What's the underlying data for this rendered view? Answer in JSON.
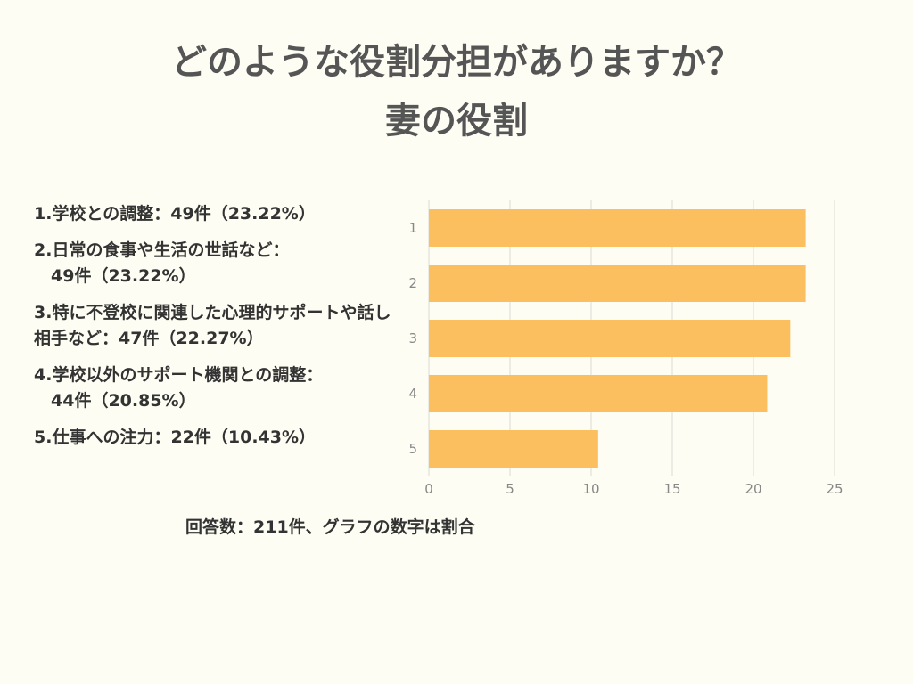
{
  "title_line1": "どのような役割分担がありますか？",
  "title_line2": "妻の役割",
  "legend_items": [
    "1.学校との調整：49件（23.22%）",
    "2.日常の食事や生活の世話など：\n　49件（23.22%）",
    "3.特に不登校に関連した心理的サポートや話し相手など：47件（22.27%）",
    "4.学校以外のサポート機関との調整：\n　44件（20.85%）",
    "5.仕事への注力：22件（10.43%）"
  ],
  "footnote": "回答数：211件、グラフの数字は割合",
  "chart_data": {
    "type": "bar",
    "orientation": "horizontal",
    "categories": [
      "1",
      "2",
      "3",
      "4",
      "5"
    ],
    "values": [
      23.22,
      23.22,
      22.27,
      20.85,
      10.43
    ],
    "xlim": [
      0,
      25
    ],
    "xticks": [
      0,
      5,
      10,
      15,
      20,
      25
    ],
    "grid": true,
    "bar_color": "#fbbf5f",
    "grid_color": "#dcdcd4",
    "tick_color": "#888888"
  }
}
